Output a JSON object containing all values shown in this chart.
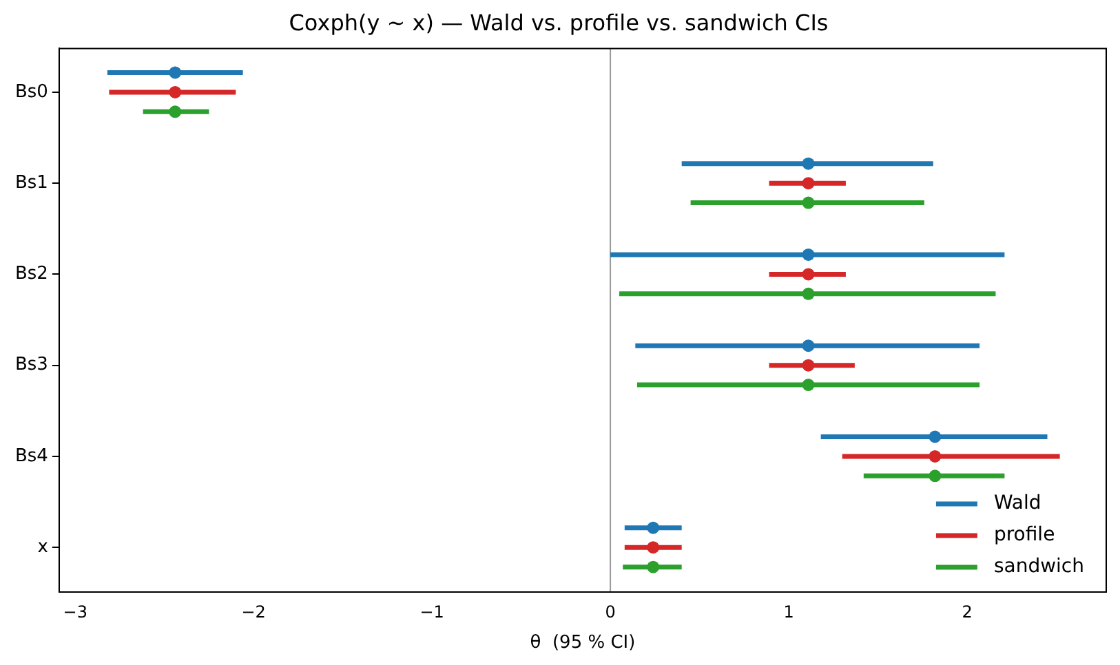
{
  "chart_data": {
    "type": "scatter",
    "orientation": "horizontal",
    "title": "Coxph(y ~ x) — Wald vs. profile vs. sandwich CIs",
    "xlabel": "θ  (95 % CI)",
    "categories": [
      "Bs0",
      "Bs1",
      "Bs2",
      "Bs3",
      "Bs4",
      "x"
    ],
    "xlim": [
      -3.09,
      2.78
    ],
    "xticks": [
      {
        "value": -3,
        "label": "−3"
      },
      {
        "value": -2,
        "label": "−2"
      },
      {
        "value": -1,
        "label": "−1"
      },
      0,
      1,
      2
    ],
    "series": [
      {
        "name": "Wald",
        "color": "#1f77b4",
        "values": [
          -2.44,
          1.11,
          1.11,
          1.11,
          1.82,
          0.24
        ],
        "errors": [
          [
            -2.82,
            -2.06
          ],
          [
            0.4,
            1.81
          ],
          [
            0.0,
            2.21
          ],
          [
            0.14,
            2.07
          ],
          [
            1.18,
            2.45
          ],
          [
            0.08,
            0.4
          ]
        ]
      },
      {
        "name": "profile",
        "color": "#d62728",
        "values": [
          -2.44,
          1.11,
          1.11,
          1.11,
          1.82,
          0.24
        ],
        "errors": [
          [
            -2.81,
            -2.1
          ],
          [
            0.89,
            1.32
          ],
          [
            0.89,
            1.32
          ],
          [
            0.89,
            1.37
          ],
          [
            1.3,
            2.52
          ],
          [
            0.08,
            0.4
          ]
        ]
      },
      {
        "name": "sandwich",
        "color": "#2ca02c",
        "values": [
          -2.44,
          1.11,
          1.11,
          1.11,
          1.82,
          0.24
        ],
        "errors": [
          [
            -2.62,
            -2.25
          ],
          [
            0.45,
            1.76
          ],
          [
            0.05,
            2.16
          ],
          [
            0.15,
            2.07
          ],
          [
            1.42,
            2.21
          ],
          [
            0.07,
            0.4
          ]
        ]
      }
    ],
    "ref_lines": [
      {
        "axis": "x",
        "value": 0,
        "color": "#999999"
      }
    ],
    "marker": "circle",
    "legend": "bottom right",
    "grid": false
  }
}
